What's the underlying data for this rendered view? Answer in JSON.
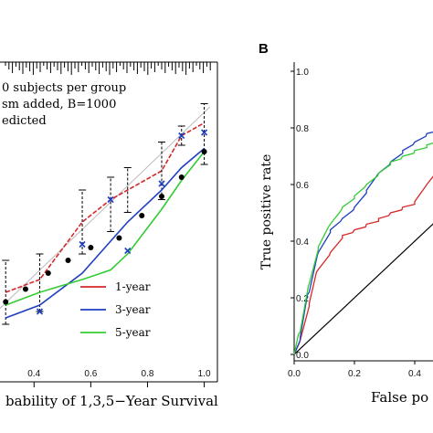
{
  "chart_data": [
    {
      "type": "line",
      "panel_label": "",
      "xlabel": "bability of 1,3,5−Year Survival",
      "ylabel": "",
      "xlim": [
        0.28,
        1.04
      ],
      "ylim": [
        0.0,
        1.0
      ],
      "x_ticks": [
        "0.4",
        "0.6",
        "0.8",
        "1.0"
      ],
      "annotations": [
        "0 subjects per group",
        "sm added, B=1000",
        "edicted"
      ],
      "legend": {
        "placement": "bottom-right",
        "entries": [
          "1-year",
          "3-year",
          "5-year"
        ]
      },
      "ideal_line": true,
      "series": [
        {
          "name": "1-year",
          "color": "#d62728",
          "x": [
            0.3,
            0.42,
            0.57,
            0.67,
            0.73,
            0.85,
            0.92,
            1.0
          ],
          "y": [
            0.28,
            0.32,
            0.5,
            0.57,
            0.6,
            0.66,
            0.77,
            0.81
          ],
          "err_low": [
            0.18,
            0.22,
            0.4,
            0.47,
            0.53,
            0.57,
            0.74,
            0.68
          ],
          "err_high": [
            0.38,
            0.4,
            0.6,
            0.64,
            0.67,
            0.75,
            0.8,
            0.87
          ]
        },
        {
          "name": "3-year",
          "color": "#1f3fbf",
          "x": [
            0.3,
            0.42,
            0.57,
            0.67,
            0.73,
            0.85,
            0.92,
            1.0
          ],
          "y": [
            0.2,
            0.24,
            0.34,
            0.44,
            0.5,
            0.6,
            0.67,
            0.73
          ]
        },
        {
          "name": "5-year",
          "color": "#33cc33",
          "x": [
            0.3,
            0.42,
            0.57,
            0.67,
            0.73,
            0.85,
            0.92,
            1.0
          ],
          "y": [
            0.24,
            0.28,
            0.32,
            0.35,
            0.4,
            0.54,
            0.63,
            0.72
          ]
        },
        {
          "name": "",
          "color": "#000000",
          "x": [
            0.3,
            0.37,
            0.45,
            0.52,
            0.6,
            0.7,
            0.78,
            0.85,
            0.92,
            1.0
          ],
          "y": [
            0.25,
            0.29,
            0.34,
            0.38,
            0.42,
            0.45,
            0.52,
            0.58,
            0.64,
            0.72
          ]
        }
      ],
      "markers": {
        "x": [
          0.42,
          0.57,
          0.67,
          0.73,
          0.85,
          0.92,
          1.0
        ],
        "y": [
          0.22,
          0.43,
          0.57,
          0.41,
          0.62,
          0.77,
          0.78
        ]
      }
    },
    {
      "type": "line",
      "panel_label": "B",
      "xlabel": "False po",
      "ylabel": "True positive rate",
      "xlim": [
        0.0,
        0.5
      ],
      "ylim": [
        0.0,
        1.0
      ],
      "x_ticks": [
        "0.0",
        "0.2",
        "0.4"
      ],
      "y_ticks": [
        "0.0",
        "0.2",
        "0.4",
        "0.6",
        "0.8",
        "1.0"
      ],
      "diagonal": true,
      "series": [
        {
          "name": "",
          "color": "#d62728",
          "x": [
            0.0,
            0.02,
            0.05,
            0.08,
            0.12,
            0.16,
            0.2,
            0.24,
            0.28,
            0.32,
            0.36,
            0.4,
            0.44,
            0.48,
            0.5
          ],
          "y": [
            0.0,
            0.05,
            0.18,
            0.3,
            0.36,
            0.42,
            0.44,
            0.46,
            0.48,
            0.5,
            0.52,
            0.54,
            0.6,
            0.66,
            0.7
          ]
        },
        {
          "name": "",
          "color": "#1f3fbf",
          "x": [
            0.0,
            0.02,
            0.05,
            0.08,
            0.12,
            0.16,
            0.2,
            0.24,
            0.28,
            0.32,
            0.36,
            0.4,
            0.44,
            0.48,
            0.5
          ],
          "y": [
            0.0,
            0.06,
            0.22,
            0.36,
            0.44,
            0.48,
            0.52,
            0.58,
            0.64,
            0.68,
            0.72,
            0.75,
            0.78,
            0.8,
            0.81
          ]
        },
        {
          "name": "",
          "color": "#33cc33",
          "x": [
            0.0,
            0.02,
            0.05,
            0.08,
            0.12,
            0.16,
            0.2,
            0.24,
            0.28,
            0.32,
            0.36,
            0.4,
            0.44,
            0.48,
            0.5
          ],
          "y": [
            0.0,
            0.08,
            0.25,
            0.38,
            0.46,
            0.52,
            0.56,
            0.6,
            0.64,
            0.68,
            0.7,
            0.72,
            0.74,
            0.76,
            0.77
          ]
        }
      ]
    }
  ]
}
